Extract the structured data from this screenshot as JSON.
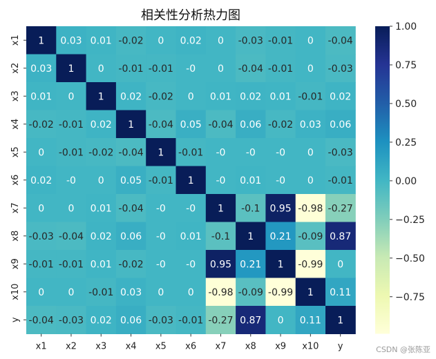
{
  "chart_data": {
    "type": "heatmap",
    "title": "相关性分析热力图",
    "x_labels": [
      "x1",
      "x2",
      "x3",
      "x4",
      "x5",
      "x6",
      "x7",
      "x8",
      "x9",
      "x10",
      "y"
    ],
    "y_labels": [
      "x1",
      "x2",
      "x3",
      "x4",
      "x5",
      "x6",
      "x7",
      "x8",
      "x9",
      "x10",
      "y"
    ],
    "values": [
      [
        1,
        0.03,
        0.01,
        -0.02,
        0,
        0.02,
        0,
        -0.03,
        -0.01,
        0,
        -0.04
      ],
      [
        0.03,
        1,
        0,
        -0.01,
        -0.01,
        0,
        0,
        -0.04,
        -0.01,
        0,
        -0.03
      ],
      [
        0.01,
        0,
        1,
        0.02,
        -0.02,
        0,
        0.01,
        0.02,
        0.01,
        -0.01,
        0.02
      ],
      [
        -0.02,
        -0.01,
        0.02,
        1,
        -0.04,
        0.05,
        -0.04,
        0.06,
        -0.02,
        0.03,
        0.06
      ],
      [
        0,
        -0.01,
        -0.02,
        -0.04,
        1,
        -0.01,
        0,
        0,
        0,
        0,
        -0.03
      ],
      [
        0.02,
        0,
        0,
        0.05,
        -0.01,
        1,
        0,
        0.01,
        0,
        0,
        -0.01
      ],
      [
        0,
        0,
        0.01,
        -0.04,
        0,
        0,
        1,
        -0.1,
        0.95,
        -0.98,
        -0.27
      ],
      [
        -0.03,
        -0.04,
        0.02,
        0.06,
        0,
        0.01,
        -0.1,
        1,
        0.21,
        -0.09,
        0.87
      ],
      [
        -0.01,
        -0.01,
        0.01,
        -0.02,
        0,
        0,
        0.95,
        0.21,
        1,
        -0.99,
        0
      ],
      [
        0,
        0,
        -0.01,
        0.03,
        0,
        0,
        -0.98,
        -0.09,
        -0.99,
        1,
        0.11
      ],
      [
        -0.04,
        -0.03,
        0.02,
        0.06,
        -0.03,
        -0.01,
        -0.27,
        0.87,
        0,
        0.11,
        1
      ]
    ],
    "colorbar": {
      "colormap": "YlGnBu",
      "vmin": -0.99,
      "vmax": 1.0,
      "ticks": [
        1.0,
        0.75,
        0.5,
        0.25,
        0.0,
        -0.25,
        -0.5,
        -0.75
      ],
      "tick_labels": [
        "1.00",
        "0.75",
        "0.50",
        "0.25",
        "0.00",
        "−0.25",
        "−0.50",
        "−0.75"
      ]
    }
  },
  "watermark": "CSDN @张陈亚"
}
